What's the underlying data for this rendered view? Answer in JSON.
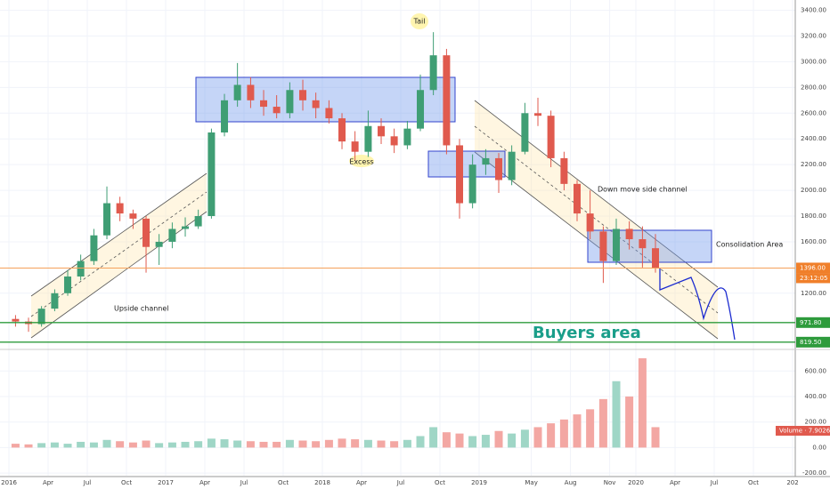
{
  "chart_data": {
    "type": "candlestick",
    "x": [
      2016.042,
      2016.125,
      2016.208,
      2016.292,
      2016.375,
      2016.458,
      2016.542,
      2016.625,
      2016.708,
      2016.792,
      2016.875,
      2016.958,
      2017.042,
      2017.125,
      2017.208,
      2017.292,
      2017.375,
      2017.458,
      2017.542,
      2017.625,
      2017.708,
      2017.792,
      2017.875,
      2017.958,
      2018.042,
      2018.125,
      2018.208,
      2018.292,
      2018.375,
      2018.458,
      2018.542,
      2018.625,
      2018.708,
      2018.792,
      2018.875,
      2018.958,
      2019.042,
      2019.125,
      2019.208,
      2019.292,
      2019.375,
      2019.458,
      2019.542,
      2019.625,
      2019.708,
      2019.792,
      2019.875,
      2019.958,
      2020.042,
      2020.125
    ],
    "open": [
      1000,
      980,
      960,
      1080,
      1200,
      1330,
      1450,
      1650,
      1900,
      1820,
      1780,
      1560,
      1600,
      1700,
      1720,
      1800,
      2450,
      2700,
      2820,
      2700,
      2650,
      2600,
      2780,
      2700,
      2640,
      2560,
      2380,
      2300,
      2500,
      2420,
      2350,
      2480,
      2780,
      3050,
      2350,
      1900,
      2200,
      2250,
      2080,
      2300,
      2600,
      2580,
      2250,
      2050,
      1820,
      1680,
      1450,
      1700,
      1620,
      1550
    ],
    "high": [
      1030,
      1010,
      1100,
      1230,
      1380,
      1500,
      1700,
      2030,
      1950,
      1850,
      1800,
      1660,
      1750,
      1790,
      1850,
      2480,
      2750,
      2990,
      2880,
      2780,
      2740,
      2840,
      2860,
      2760,
      2700,
      2600,
      2460,
      2620,
      2560,
      2480,
      2540,
      2900,
      3230,
      3100,
      2400,
      2280,
      2320,
      2290,
      2350,
      2680,
      2720,
      2620,
      2300,
      2080,
      2000,
      1720,
      1780,
      1760,
      1720,
      1660
    ],
    "low": [
      940,
      900,
      940,
      1060,
      1180,
      1300,
      1420,
      1620,
      1760,
      1700,
      1360,
      1420,
      1550,
      1640,
      1700,
      1780,
      2420,
      2650,
      2640,
      2580,
      2560,
      2560,
      2620,
      2560,
      2520,
      2320,
      2230,
      2260,
      2360,
      2290,
      2320,
      2460,
      2740,
      2280,
      1780,
      1860,
      2120,
      1980,
      2040,
      2280,
      2500,
      2180,
      2000,
      1760,
      1620,
      1280,
      1420,
      1540,
      1400,
      1360
    ],
    "close": [
      980,
      960,
      1080,
      1200,
      1330,
      1450,
      1650,
      1900,
      1820,
      1780,
      1560,
      1600,
      1700,
      1720,
      1800,
      2450,
      2700,
      2820,
      2700,
      2650,
      2600,
      2780,
      2700,
      2640,
      2560,
      2380,
      2300,
      2500,
      2420,
      2350,
      2480,
      2780,
      3050,
      2350,
      1900,
      2200,
      2250,
      2080,
      2300,
      2600,
      2580,
      2250,
      2050,
      1820,
      1680,
      1450,
      1700,
      1620,
      1550,
      1396
    ],
    "volume": [
      30,
      25,
      35,
      40,
      30,
      45,
      40,
      60,
      50,
      40,
      55,
      35,
      40,
      45,
      50,
      70,
      65,
      55,
      50,
      45,
      45,
      60,
      55,
      50,
      60,
      70,
      65,
      60,
      55,
      50,
      60,
      90,
      160,
      120,
      110,
      90,
      100,
      130,
      110,
      140,
      160,
      190,
      220,
      260,
      300,
      380,
      520,
      400,
      700,
      160
    ],
    "ylim": [
      770,
      3480
    ],
    "yticks": [
      {
        "value": 3400,
        "label": "3400.00"
      },
      {
        "value": 3200,
        "label": "3200.00"
      },
      {
        "value": 3000,
        "label": "3000.00"
      },
      {
        "value": 2800,
        "label": "2800.00"
      },
      {
        "value": 2600,
        "label": "2600.00"
      },
      {
        "value": 2400,
        "label": "2400.00"
      },
      {
        "value": 2200,
        "label": "2200.00"
      },
      {
        "value": 2000,
        "label": "2000.00"
      },
      {
        "value": 1800,
        "label": "1800.00"
      },
      {
        "value": 1600,
        "label": "1600.00"
      },
      {
        "value": 1200,
        "label": "1200.00"
      }
    ],
    "vlim": [
      -220,
      755
    ],
    "vticks": [
      {
        "value": 600,
        "label": "600.00"
      },
      {
        "value": 400,
        "label": "400.00"
      },
      {
        "value": 200,
        "label": "200.00"
      },
      {
        "value": 0,
        "label": "0.00"
      },
      {
        "value": -200,
        "label": "-200.00"
      }
    ],
    "xlim": [
      2015.943,
      2021.017
    ],
    "xticks": [
      2016,
      {
        "value": 2016.25,
        "label": "Apr"
      },
      {
        "value": 2016.5,
        "label": "Jul"
      },
      {
        "value": 2016.75,
        "label": "Oct"
      },
      2017,
      {
        "value": 2017.25,
        "label": "Apr"
      },
      {
        "value": 2017.5,
        "label": "Jul"
      },
      {
        "value": 2017.75,
        "label": "Oct"
      },
      2018,
      {
        "value": 2018.25,
        "label": "Apr"
      },
      {
        "value": 2018.5,
        "label": "Jul"
      },
      {
        "value": 2018.75,
        "label": "Oct"
      },
      2019,
      {
        "value": 2019.333,
        "label": "May"
      },
      {
        "value": 2019.583,
        "label": "Aug"
      },
      {
        "value": 2019.833,
        "label": "Nov"
      },
      2020,
      {
        "value": 2020.25,
        "label": "Apr"
      },
      {
        "value": 2020.5,
        "label": "Jul"
      },
      {
        "value": 2020.75,
        "label": "Oct"
      },
      {
        "value": 2021,
        "label": "202"
      }
    ],
    "up_color": "#3f9e74",
    "down_color": "#e05a4e",
    "vol_up_color": "#9fd6c6",
    "vol_down_color": "#f3a7a3",
    "hlines": [
      {
        "value": 1396,
        "label": "1396.00",
        "color": "#f5a15a",
        "label_color": "#f07f2a"
      },
      {
        "value": 971.8,
        "label": "971.80",
        "color": "#2e9b3c",
        "label_color": "#2e9b3c"
      },
      {
        "value": 819.5,
        "label": "819.50",
        "color": "#2e9b3c",
        "label_color": "#2e9b3c"
      }
    ],
    "countdown": "23:12:05",
    "volume_label": "Volume · 7.9026",
    "annotations": {
      "tail": "Tail",
      "excess": "Excess",
      "upside": "Upside channel",
      "down": "Down move side channel",
      "consolidation": "Consolidation Area",
      "buyers": "Buyers area"
    }
  }
}
